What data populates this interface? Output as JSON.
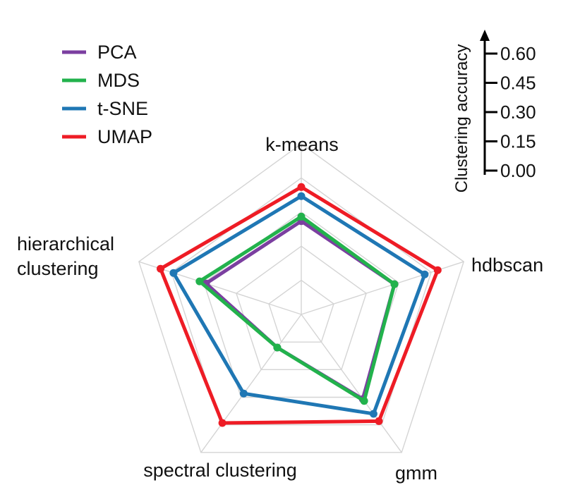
{
  "chart_data": {
    "type": "radar",
    "axes": [
      "k-means",
      "hdbscan",
      "gmm",
      "spectral clustering",
      "hierarchical clustering"
    ],
    "axis_label_lines": [
      [
        "k-means"
      ],
      [
        "hdbscan"
      ],
      [
        "gmm"
      ],
      [
        "spectral clustering"
      ],
      [
        "hierarchical",
        "clustering"
      ]
    ],
    "rlim": [
      0,
      0.75
    ],
    "grid_rings": 5,
    "series": [
      {
        "name": "PCA",
        "color": "#7b3fa0",
        "values": [
          0.41,
          0.43,
          0.46,
          0.18,
          0.44
        ]
      },
      {
        "name": "MDS",
        "color": "#22b24c",
        "values": [
          0.43,
          0.43,
          0.47,
          0.18,
          0.47
        ]
      },
      {
        "name": "t-SNE",
        "color": "#1f77b4",
        "values": [
          0.52,
          0.57,
          0.54,
          0.43,
          0.59
        ]
      },
      {
        "name": "UMAP",
        "color": "#ee1c25",
        "values": [
          0.56,
          0.63,
          0.58,
          0.59,
          0.65
        ]
      }
    ],
    "scale": {
      "title": "Clustering accuracy",
      "ticks": [
        "0.60",
        "0.45",
        "0.30",
        "0.15",
        "0.00"
      ]
    },
    "legend_position": "top-left",
    "grid": true
  }
}
